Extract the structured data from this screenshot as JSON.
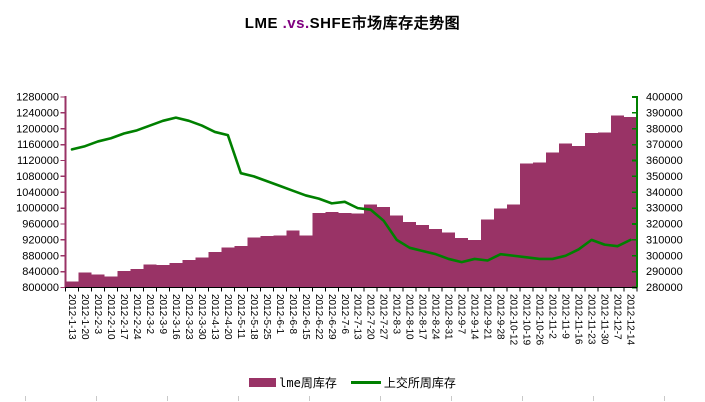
{
  "title": {
    "prefix": "LME ",
    "vs": ".vs.",
    "suffix": "SHFE市场库存走势图",
    "vs_color": "#800080"
  },
  "legend": {
    "items": [
      {
        "label": "lme周库存",
        "swatch": "bar",
        "color": "#993366"
      },
      {
        "label": "上交所周库存",
        "swatch": "line",
        "color": "#008000"
      }
    ]
  },
  "chart_data": {
    "type": "combo",
    "title": "LME .vs.SHFE市场库存走势图",
    "grid": false,
    "legend_position": "bottom",
    "categories": [
      "2012-1-13",
      "2012-1-20",
      "2012-2-3",
      "2012-2-10",
      "2012-2-17",
      "2012-2-24",
      "2012-3-2",
      "2012-3-9",
      "2012-3-16",
      "2012-3-23",
      "2012-3-30",
      "2012-4-13",
      "2012-4-20",
      "2012-5-11",
      "2012-5-18",
      "2012-5-25",
      "2012-6-1",
      "2012-6-8",
      "2012-6-15",
      "2012-6-22",
      "2012-6-29",
      "2012-7-6",
      "2012-7-13",
      "2012-7-20",
      "2012-7-27",
      "2012-8-3",
      "2012-8-10",
      "2012-8-17",
      "2012-8-24",
      "2012-8-31",
      "2012-9-7",
      "2012-9-14",
      "2012-9-21",
      "2012-9-28",
      "2012-10-12",
      "2012-10-19",
      "2012-10-26",
      "2012-11-2",
      "2012-11-9",
      "2012-11-16",
      "2012-11-23",
      "2012-11-30",
      "2012-12-7",
      "2012-12-14"
    ],
    "series": [
      {
        "name": "lme周库存",
        "type": "bar",
        "axis": "left",
        "color": "#993366",
        "values": [
          815000,
          838000,
          833000,
          828000,
          842000,
          846000,
          858000,
          857000,
          862000,
          869000,
          876000,
          890000,
          901000,
          905000,
          926000,
          930000,
          931000,
          944000,
          931000,
          988000,
          990000,
          988000,
          986000,
          1009000,
          1003000,
          981000,
          965000,
          957000,
          948000,
          938000,
          925000,
          920000,
          971000,
          999000,
          1009000,
          1112000,
          1115000,
          1140000,
          1163000,
          1157000,
          1189000,
          1191000,
          1233000,
          1230000
        ]
      },
      {
        "name": "上交所周库存",
        "type": "line",
        "axis": "right",
        "color": "#008000",
        "values": [
          367000,
          369000,
          372000,
          374000,
          377000,
          379000,
          382000,
          385000,
          387000,
          385000,
          382000,
          378000,
          376000,
          352000,
          350000,
          347000,
          344000,
          341000,
          338000,
          336000,
          333000,
          334000,
          330000,
          329000,
          322000,
          310000,
          305000,
          303000,
          301000,
          298000,
          296000,
          298000,
          297000,
          301000,
          300000,
          299000,
          298000,
          298000,
          300000,
          304000,
          310000,
          307000,
          306000,
          310000
        ]
      }
    ],
    "left_axis": {
      "min": 800000,
      "max": 1280000,
      "step": 40000,
      "color": "#993366",
      "tick_labels": [
        "1280000",
        "1240000",
        "1200000",
        "1160000",
        "1120000",
        "1080000",
        "1040000",
        "1000000",
        "960000",
        "920000",
        "880000",
        "840000",
        "800000"
      ]
    },
    "right_axis": {
      "min": 280000,
      "max": 400000,
      "step": 10000,
      "color": "#008000",
      "tick_labels": [
        "400000",
        "390000",
        "380000",
        "370000",
        "360000",
        "350000",
        "340000",
        "330000",
        "320000",
        "310000",
        "300000",
        "290000",
        "280000"
      ]
    },
    "x_axis": {
      "color": "#000000"
    }
  }
}
